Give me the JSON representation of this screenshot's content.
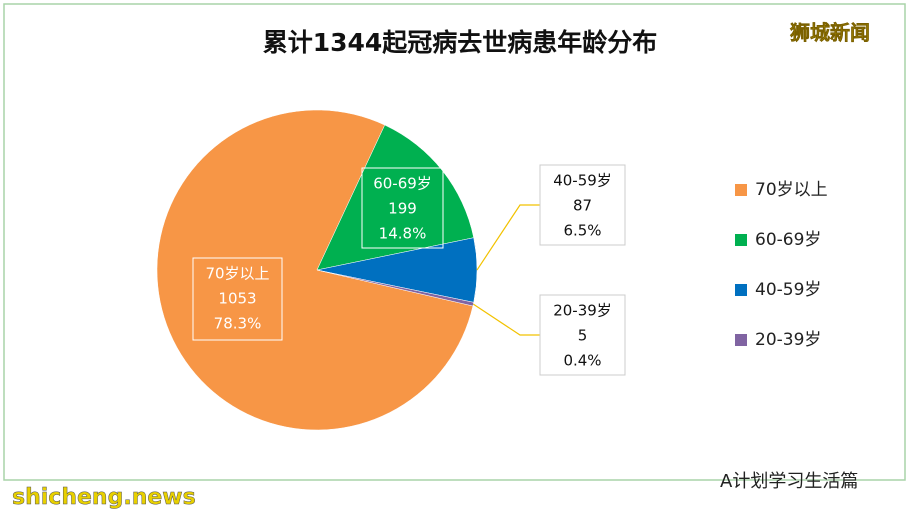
{
  "chart_data": {
    "type": "pie",
    "title": "累计1344起冠病去世病患年龄分布",
    "categories": [
      "70岁以上",
      "60-69岁",
      "40-59岁",
      "20-39岁"
    ],
    "values": [
      1053,
      199,
      87,
      5
    ],
    "percents": [
      {
        "value": 78.3,
        "label": "78.3%"
      },
      {
        "value": 14.8,
        "label": "14.8%"
      },
      {
        "value": 6.5,
        "label": "6.5%"
      },
      {
        "value": 0.4,
        "label": "0.4%"
      }
    ],
    "colors": [
      "#f79646",
      "#00b050",
      "#0070c0",
      "#8064a2"
    ],
    "legend": "right"
  },
  "watermarks": {
    "top_right": "狮城新闻",
    "bottom_left": "shicheng.news",
    "bottom_right": "A计划学习生活篇"
  }
}
